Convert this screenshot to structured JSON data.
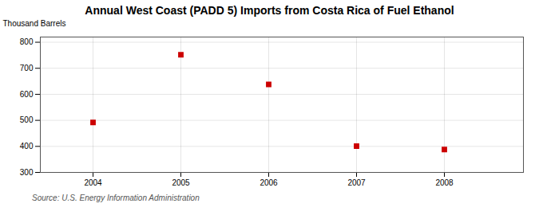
{
  "chart_data": {
    "type": "scatter",
    "title": "Annual West Coast (PADD 5) Imports from Costa Rica of Fuel Ethanol",
    "ylabel": "Thousand Barrels",
    "source": "Source: U.S. Energy Information Administration",
    "x": [
      2004,
      2005,
      2006,
      2007,
      2008
    ],
    "values": [
      492,
      752,
      638,
      401,
      388
    ],
    "xlim": [
      2003.4,
      2008.9
    ],
    "ylim": [
      300,
      820
    ],
    "xticks": [
      2004,
      2005,
      2006,
      2007,
      2008
    ],
    "yticks": [
      300,
      400,
      500,
      600,
      700,
      800
    ],
    "color": "#cc0000",
    "marker": "square",
    "grid": true
  }
}
